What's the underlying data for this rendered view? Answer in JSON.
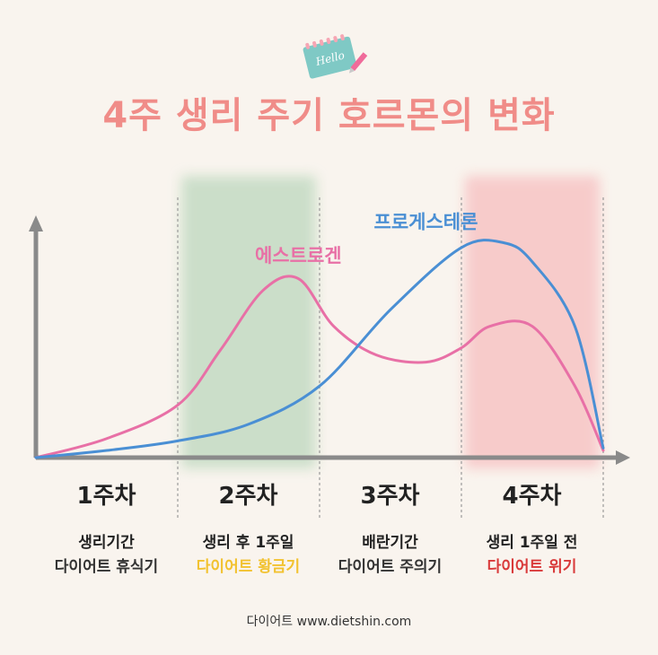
{
  "title": "4주 생리 주기 호르몬의 변화",
  "notepad_text": "Hello",
  "colors": {
    "title": "#f08c88",
    "estrogen": "#e870a6",
    "progesterone": "#4a8fd4",
    "band_week2": "#c9ddc8",
    "band_week4": "#f7c9c9",
    "axis": "#8a8a8a",
    "golden": "#f2c230",
    "crisis": "#d93a3a"
  },
  "weeks": [
    {
      "label": "1주차",
      "line1": "생리기간",
      "line2": "다이어트 휴식기",
      "line2_color": "#333333"
    },
    {
      "label": "2주차",
      "line1": "생리 후 1주일",
      "line2": "다이어트 황금기",
      "line2_color": "#f2c230"
    },
    {
      "label": "3주차",
      "line1": "배란기간",
      "line2": "다이어트 주의기",
      "line2_color": "#333333"
    },
    {
      "label": "4주차",
      "line1": "생리 1주일 전",
      "line2": "다이어트 위기",
      "line2_color": "#d93a3a"
    }
  ],
  "footer": "다이어트 www.dietshin.com",
  "chart_data": {
    "type": "line",
    "xlim": [
      0,
      4
    ],
    "ylim": [
      0,
      1
    ],
    "grid": false,
    "highlighted_weeks": [
      2,
      4
    ],
    "series": [
      {
        "name": "에스트로겐",
        "x": [
          0,
          0.5,
          1.0,
          1.3,
          1.6,
          1.85,
          2.1,
          2.4,
          2.75,
          3.0,
          3.2,
          3.5,
          3.8,
          4.0
        ],
        "y": [
          0.0,
          0.08,
          0.22,
          0.45,
          0.7,
          0.75,
          0.55,
          0.43,
          0.4,
          0.46,
          0.55,
          0.55,
          0.3,
          0.03
        ]
      },
      {
        "name": "프로게스테론",
        "x": [
          0,
          0.5,
          1.0,
          1.5,
          2.0,
          2.5,
          3.0,
          3.3,
          3.5,
          3.8,
          4.0
        ],
        "y": [
          0.0,
          0.03,
          0.07,
          0.14,
          0.3,
          0.62,
          0.88,
          0.9,
          0.82,
          0.55,
          0.04
        ]
      }
    ]
  }
}
